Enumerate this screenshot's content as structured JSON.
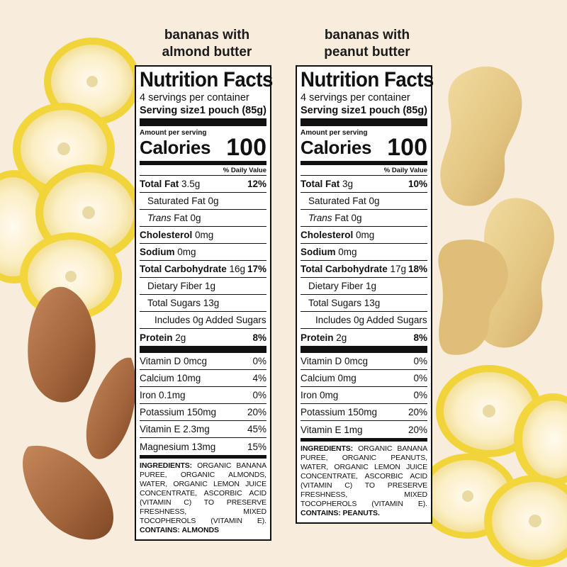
{
  "colors": {
    "background": "#f8ecdd",
    "banana_peel": "#f1d63a",
    "banana_flesh": "#fbf0c8",
    "almond": "#a86a3c",
    "peanut": "#e6c98a"
  },
  "decorations": [
    "banana-slices-left",
    "almonds",
    "peanuts",
    "banana-slices-right"
  ],
  "left": {
    "heading": [
      "bananas with",
      "almond butter"
    ],
    "label": {
      "title": "Nutrition Facts",
      "servings": "4 servings per container",
      "serving_size_label": "Serving size",
      "serving_size_value": "1 pouch (85g)",
      "amount_per_serving": "Amount per serving",
      "calories_label": "Calories",
      "calories_value": "100",
      "dv_header": "% Daily Value",
      "total_fat_label": "Total Fat",
      "total_fat_value": "3.5g",
      "total_fat_pct": "12%",
      "sat_fat": "Saturated Fat 0g",
      "trans_label": "Trans",
      "trans_rest": "Fat 0g",
      "chol_label": "Cholesterol",
      "chol_value": "0mg",
      "sodium_label": "Sodium",
      "sodium_value": "0mg",
      "carb_label": "Total Carbohydrate",
      "carb_value": "16g",
      "carb_pct": "17%",
      "fiber": "Dietary Fiber 1g",
      "sugars": "Total Sugars 13g",
      "added_sugars": "Includes 0g Added Sugars",
      "protein_label": "Protein",
      "protein_value": "2g",
      "protein_pct": "8%",
      "vitamins": [
        {
          "name": "Vitamin D 0mcg",
          "pct": "0%"
        },
        {
          "name": "Calcium 10mg",
          "pct": "4%"
        },
        {
          "name": "Iron 0.1mg",
          "pct": "0%"
        },
        {
          "name": "Potassium 150mg",
          "pct": "20%"
        },
        {
          "name": "Vitamin E 2.3mg",
          "pct": "45%"
        },
        {
          "name": "Magnesium 13mg",
          "pct": "15%"
        }
      ],
      "ingredients_label": "INGREDIENTS:",
      "ingredients_text": "ORGANIC BANANA PUREE, ORGANIC ALMONDS, WATER, ORGANIC LEMON JUICE CONCENTRATE, ASCORBIC ACID (VITAMIN C) TO PRESERVE FRESHNESS, MIXED TOCOPHEROLS (VITAMIN E).",
      "contains_label": "CONTAINS:",
      "contains_value": "ALMONDS"
    }
  },
  "right": {
    "heading": [
      "bananas with",
      "peanut butter"
    ],
    "label": {
      "title": "Nutrition Facts",
      "servings": "4 servings per container",
      "serving_size_label": "Serving size",
      "serving_size_value": "1 pouch (85g)",
      "amount_per_serving": "Amount per serving",
      "calories_label": "Calories",
      "calories_value": "100",
      "dv_header": "% Daily Value",
      "total_fat_label": "Total Fat",
      "total_fat_value": "3g",
      "total_fat_pct": "10%",
      "sat_fat": "Saturated Fat 0g",
      "trans_label": "Trans",
      "trans_rest": "Fat 0g",
      "chol_label": "Cholesterol",
      "chol_value": "0mg",
      "sodium_label": "Sodium",
      "sodium_value": "0mg",
      "carb_label": "Total Carbohydrate",
      "carb_value": "17g",
      "carb_pct": "18%",
      "fiber": "Dietary Fiber 1g",
      "sugars": "Total Sugars 13g",
      "added_sugars": "Includes 0g Added Sugars",
      "protein_label": "Protein",
      "protein_value": "2g",
      "protein_pct": "8%",
      "vitamins": [
        {
          "name": "Vitamin D 0mcg",
          "pct": "0%"
        },
        {
          "name": "Calcium 0mg",
          "pct": "0%"
        },
        {
          "name": "Iron 0mg",
          "pct": "0%"
        },
        {
          "name": "Potassium 150mg",
          "pct": "20%"
        },
        {
          "name": "Vitamin E 1mg",
          "pct": "20%"
        }
      ],
      "ingredients_label": "INGREDIENTS:",
      "ingredients_text": "ORGANIC BANANA PUREE, ORGANIC PEANUTS, WATER, ORGANIC LEMON JUICE CONCENTRATE, ASCORBIC ACID (VITAMIN C) TO PRESERVE FRESHNESS, MIXED TOCOPHEROLS (VITAMIN E).",
      "contains_label": "CONTAINS:",
      "contains_value": "PEANUTS."
    }
  }
}
